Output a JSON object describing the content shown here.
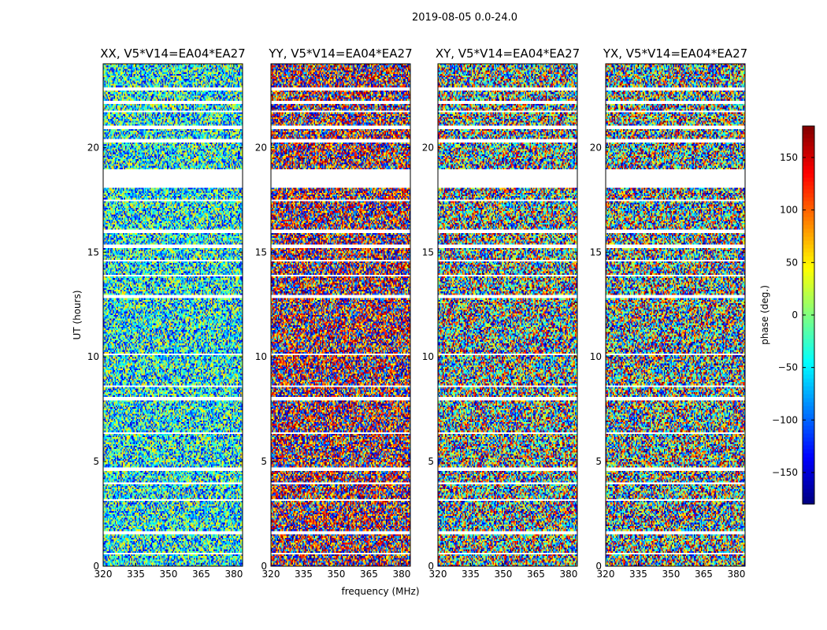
{
  "figure": {
    "suptitle": "2019-08-05 0.0-24.0"
  },
  "chart_data": {
    "type": "heatmap",
    "panels": [
      {
        "title": "XX, V5*V14=EA04*EA27",
        "mean_phase_deg": -40,
        "scatter_deg": 110
      },
      {
        "title": "YY, V5*V14=EA04*EA27",
        "mean_phase_deg": 165,
        "scatter_deg": 140
      },
      {
        "title": "XY, V5*V14=EA04*EA27",
        "mean_phase_deg": -20,
        "scatter_deg": 170
      },
      {
        "title": "YX, V5*V14=EA04*EA27",
        "mean_phase_deg": -30,
        "scatter_deg": 170
      }
    ],
    "xlabel": "frequency (MHz)",
    "ylabel": "UT (hours)",
    "xlim": [
      320,
      384
    ],
    "ylim": [
      0,
      24
    ],
    "xticks": [
      320,
      335,
      350,
      365,
      380
    ],
    "yticks": [
      0,
      5,
      10,
      15,
      20
    ],
    "colorbar": {
      "label": "phase (deg.)",
      "range": [
        -180,
        180
      ],
      "ticks": [
        150,
        100,
        50,
        0,
        -50,
        -100,
        -150
      ],
      "tick_labels": [
        "150",
        "100",
        "50",
        "0",
        "−50",
        "−100",
        "−150"
      ],
      "colormap": "jet"
    },
    "flagged_intervals_ut_hours": [
      [
        0.55,
        0.62
      ],
      [
        1.5,
        1.68
      ],
      [
        3.1,
        3.16
      ],
      [
        3.95,
        4.03
      ],
      [
        4.55,
        4.72
      ],
      [
        6.35,
        6.42
      ],
      [
        7.9,
        8.08
      ],
      [
        8.55,
        8.62
      ],
      [
        10.05,
        10.12
      ],
      [
        12.8,
        12.95
      ],
      [
        13.85,
        13.92
      ],
      [
        14.55,
        14.62
      ],
      [
        15.2,
        15.35
      ],
      [
        15.95,
        16.05
      ],
      [
        17.45,
        17.52
      ],
      [
        18.1,
        18.95
      ],
      [
        20.25,
        20.4
      ],
      [
        20.9,
        21.0
      ],
      [
        21.65,
        21.78
      ],
      [
        22.05,
        22.2
      ],
      [
        22.7,
        22.9
      ]
    ],
    "grid": false,
    "legend": "none"
  }
}
